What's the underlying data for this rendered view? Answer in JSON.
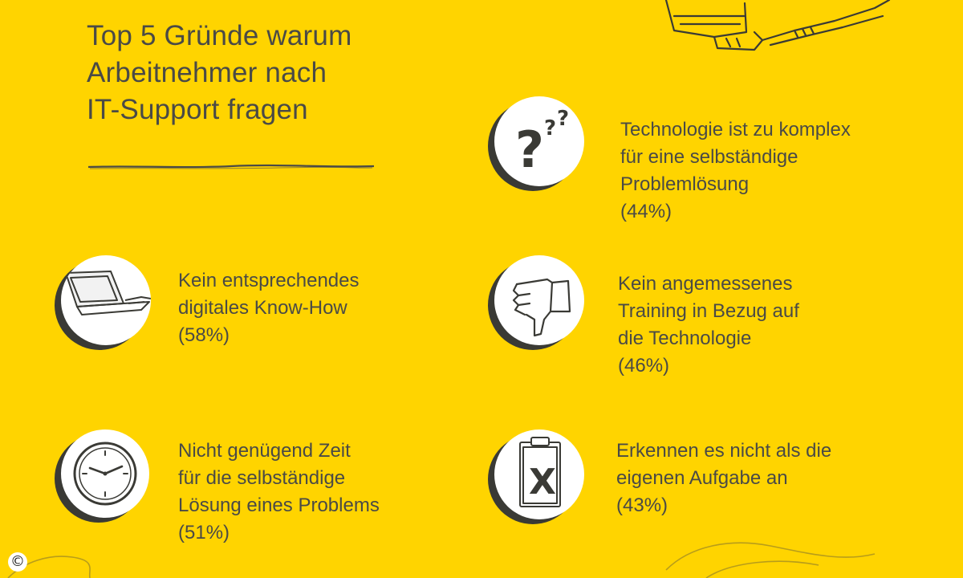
{
  "title": {
    "line1": "Top 5 Gründe warum",
    "line2": "Arbeitnehmer nach",
    "line3": "IT-Support fragen"
  },
  "items": [
    {
      "icon": "question-marks-icon",
      "lines": [
        "Technologie ist zu komplex",
        "für eine selbständige",
        "Problemlösung"
      ],
      "percent": "(44%)"
    },
    {
      "icon": "laptop-hand-icon",
      "lines": [
        "Kein entsprechendes",
        "digitales Know-How"
      ],
      "percent": "(58%)"
    },
    {
      "icon": "thumbs-down-icon",
      "lines": [
        "Kein angemessenes",
        "Training in Bezug auf",
        "die Technologie"
      ],
      "percent": "(46%)"
    },
    {
      "icon": "clock-icon",
      "lines": [
        "Nicht genügend Zeit",
        "für die selbständige",
        "Lösung eines Problems"
      ],
      "percent": "(51%)"
    },
    {
      "icon": "clipboard-x-icon",
      "lines": [
        "Erkennen es nicht als die",
        "eigenen Aufgabe an"
      ],
      "percent": "(43%)"
    }
  ],
  "copyright_symbol": "©",
  "colors": {
    "background": "#ffd400",
    "text": "#4a4a46",
    "icon_fill": "#ffffff",
    "icon_shadow": "#3a3a35"
  }
}
